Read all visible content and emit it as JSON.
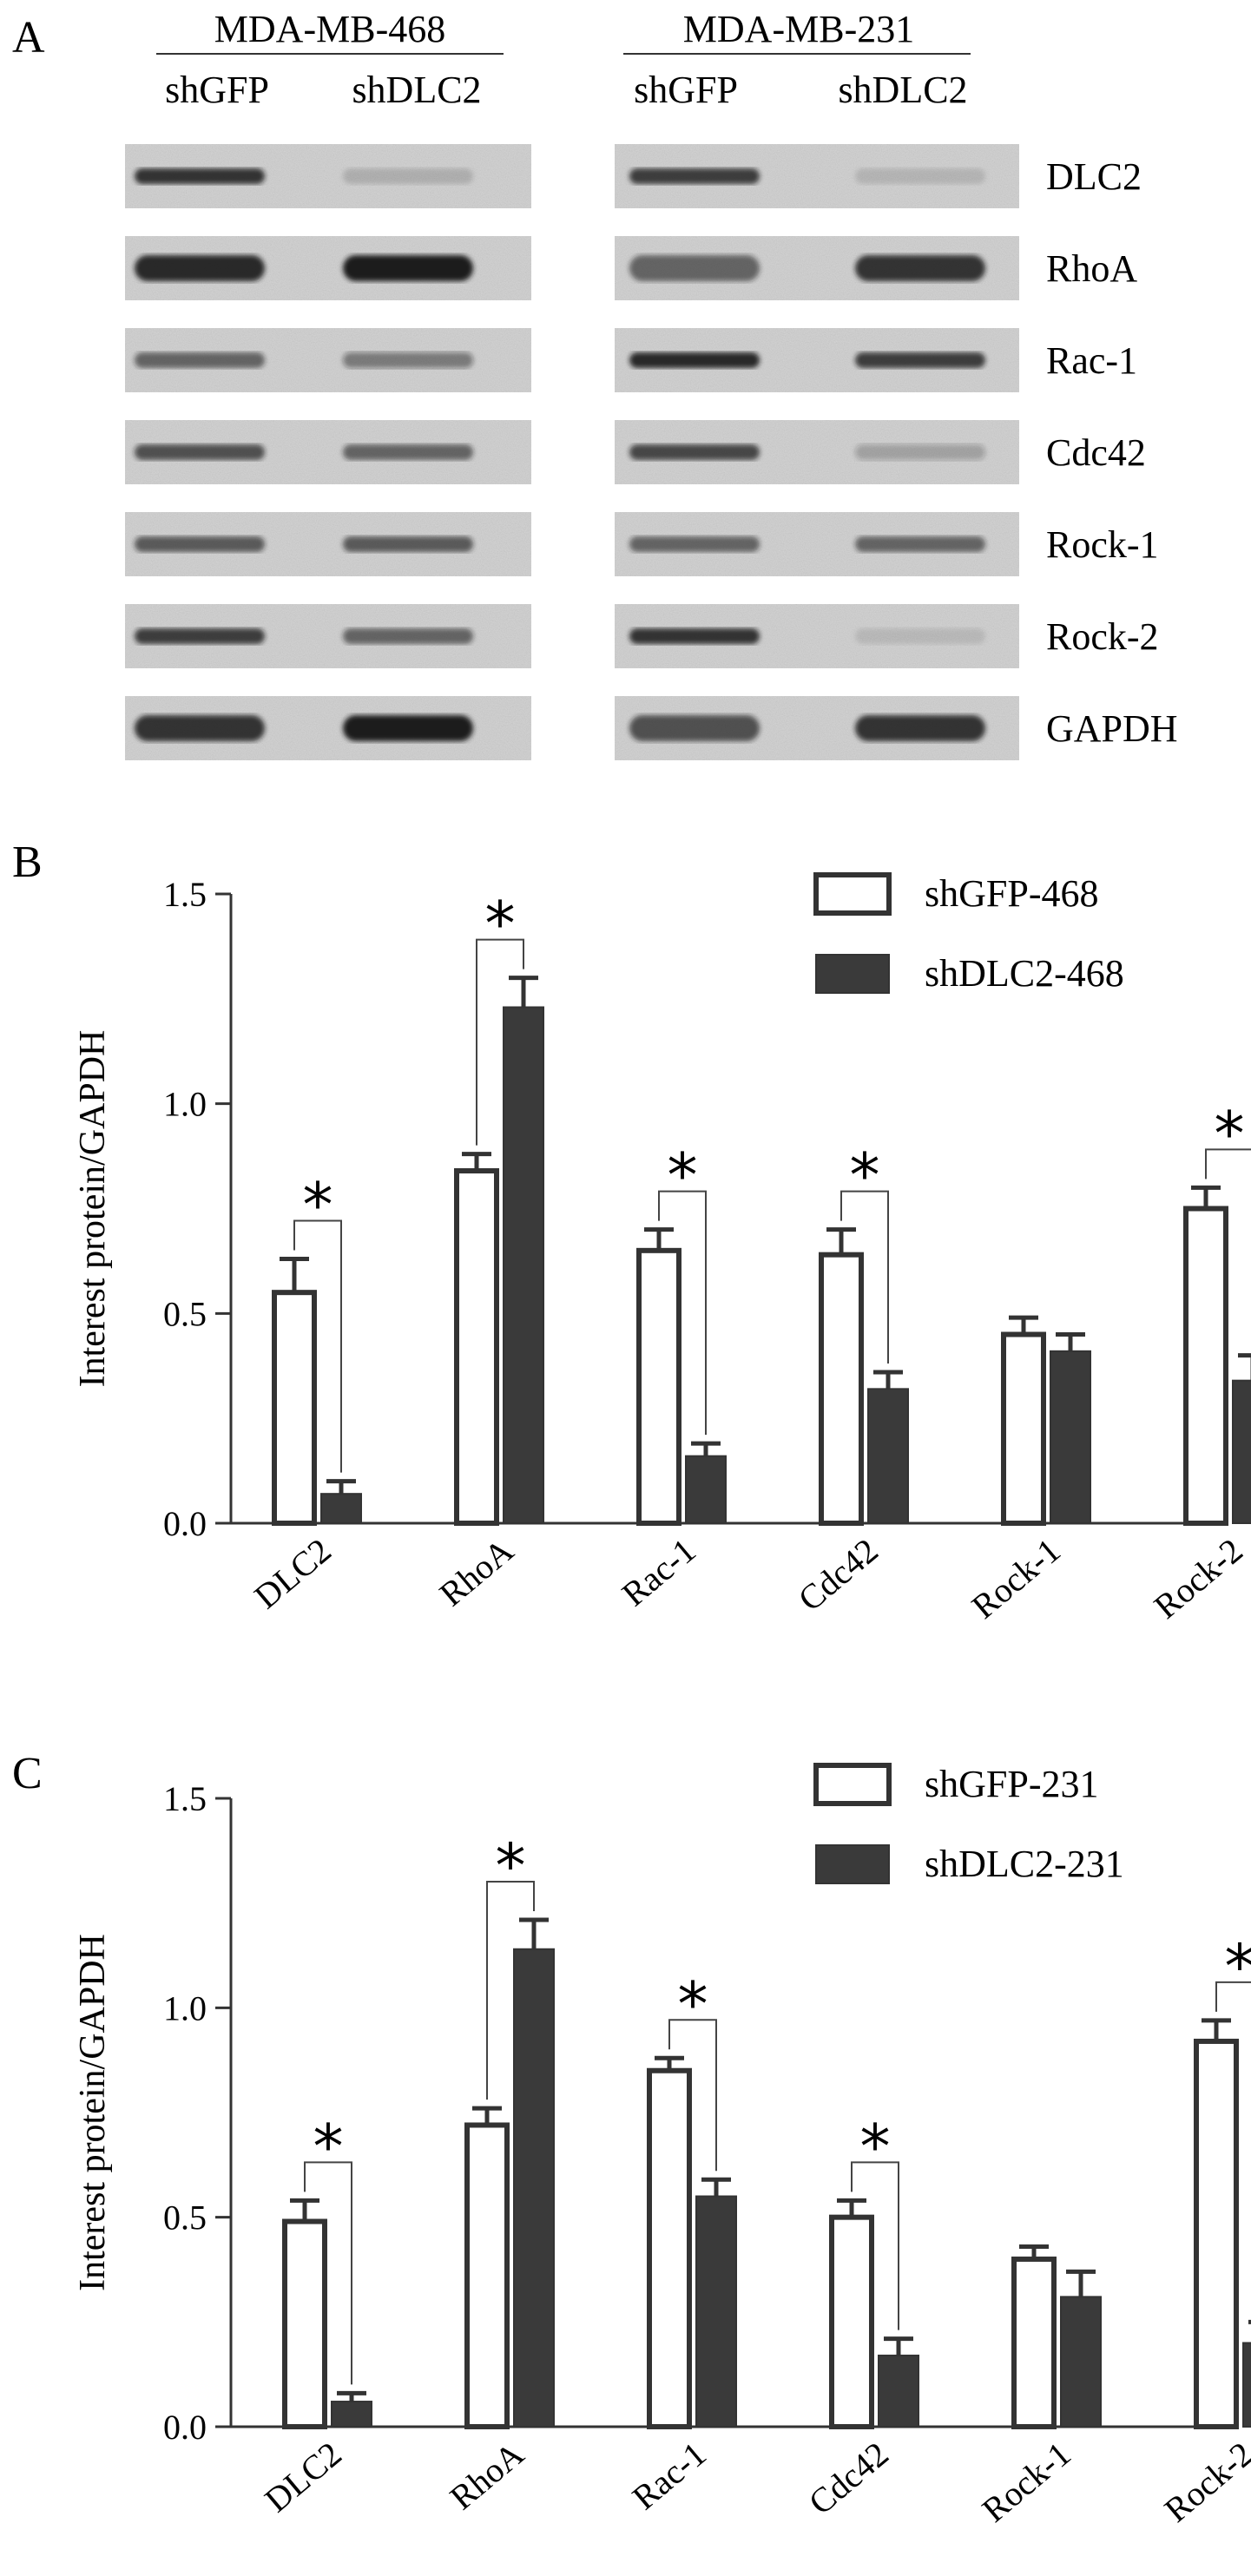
{
  "panel_a": {
    "letter": "A",
    "cell_lines": [
      {
        "name": "MDA-MB-468",
        "conditions": [
          "shGFP",
          "shDLC2"
        ]
      },
      {
        "name": "MDA-MB-231",
        "conditions": [
          "shGFP",
          "shDLC2"
        ]
      }
    ],
    "proteins": [
      "DLC2",
      "RhoA",
      "Rac-1",
      "Cdc42",
      "Rock-1",
      "Rock-2",
      "GAPDH"
    ]
  },
  "chart_data": [
    {
      "panel": "B",
      "type": "bar",
      "ylabel": "Interest protein/GAPDH",
      "ylim": [
        0,
        1.5
      ],
      "yticks": [
        "0.0",
        "0.5",
        "1.0",
        "1.5"
      ],
      "categories": [
        "DLC2",
        "RhoA",
        "Rac-1",
        "Cdc42",
        "Rock-1",
        "Rock-2"
      ],
      "series": [
        {
          "name": "shGFP-468",
          "style": "open",
          "values": [
            0.55,
            0.84,
            0.65,
            0.64,
            0.45,
            0.75
          ],
          "errors": [
            0.08,
            0.04,
            0.05,
            0.06,
            0.04,
            0.05
          ]
        },
        {
          "name": "shDLC2-468",
          "style": "filled",
          "values": [
            0.07,
            1.23,
            0.16,
            0.32,
            0.41,
            0.34
          ],
          "errors": [
            0.03,
            0.07,
            0.03,
            0.04,
            0.04,
            0.06
          ]
        }
      ],
      "significance": [
        true,
        true,
        true,
        true,
        false,
        true
      ],
      "sig_mark": "*",
      "legend": "top-right"
    },
    {
      "panel": "C",
      "type": "bar",
      "ylabel": "Interest protein/GAPDH",
      "ylim": [
        0,
        1.5
      ],
      "yticks": [
        "0.0",
        "0.5",
        "1.0",
        "1.5"
      ],
      "categories": [
        "DLC2",
        "RhoA",
        "Rac-1",
        "Cdc42",
        "Rock-1",
        "Rock-2"
      ],
      "series": [
        {
          "name": "shGFP-231",
          "style": "open",
          "values": [
            0.49,
            0.72,
            0.85,
            0.5,
            0.4,
            0.92
          ],
          "errors": [
            0.05,
            0.04,
            0.03,
            0.04,
            0.03,
            0.05
          ]
        },
        {
          "name": "shDLC2-231",
          "style": "filled",
          "values": [
            0.06,
            1.14,
            0.55,
            0.17,
            0.31,
            0.2
          ],
          "errors": [
            0.02,
            0.07,
            0.04,
            0.04,
            0.06,
            0.05
          ]
        }
      ],
      "significance": [
        true,
        true,
        true,
        true,
        false,
        true
      ],
      "sig_mark": "*",
      "legend": "top-right"
    }
  ]
}
